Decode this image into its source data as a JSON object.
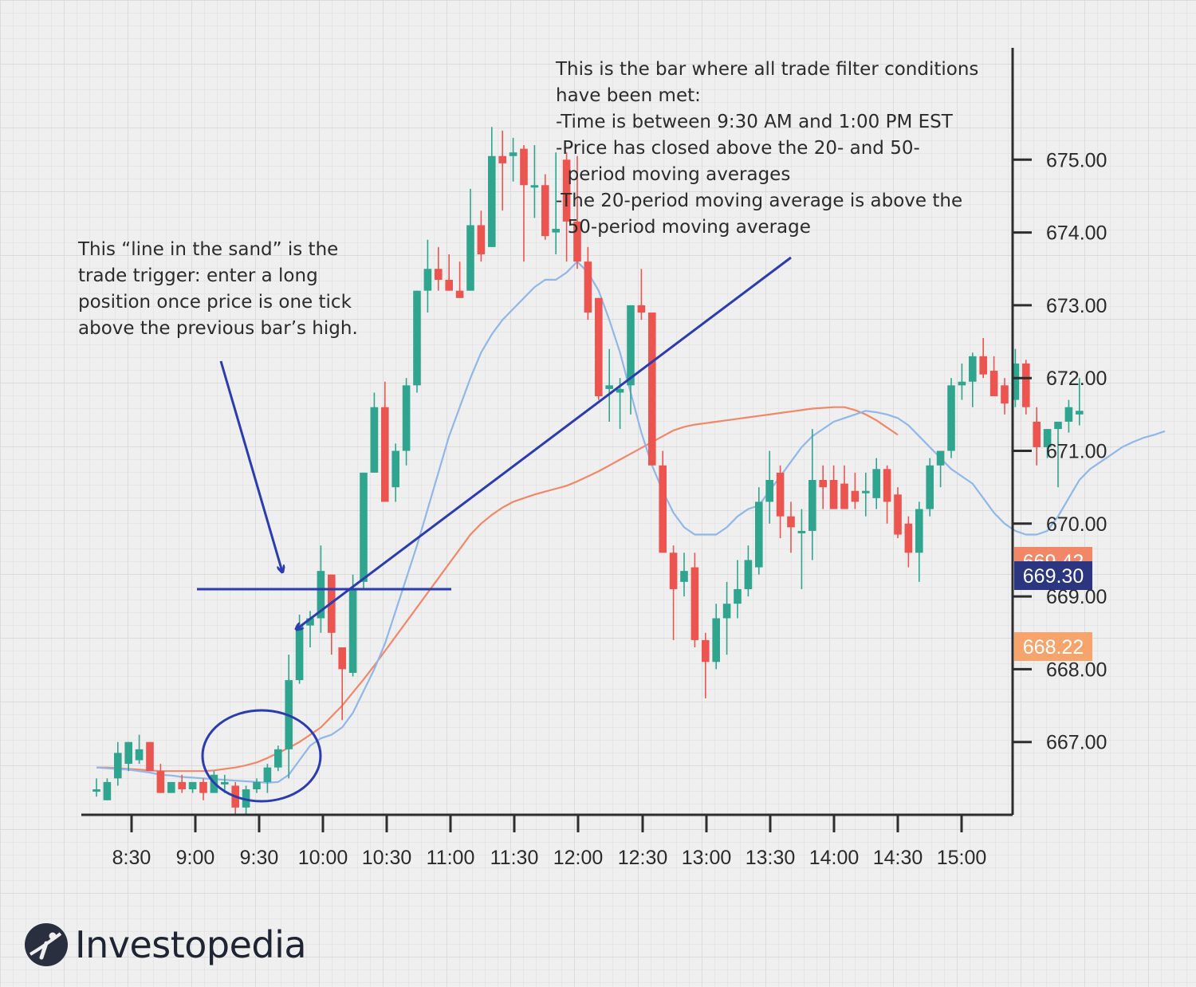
{
  "chart_data": {
    "type": "candlestick",
    "x_ticks": [
      "8:30",
      "9:00",
      "9:30",
      "10:00",
      "10:30",
      "11:00",
      "11:30",
      "12:00",
      "12:30",
      "13:00",
      "13:30",
      "14:00",
      "14:30",
      "15:00"
    ],
    "y_ticks": [
      "667.00",
      "668.00",
      "669.00",
      "670.00",
      "671.00",
      "672.00",
      "673.00",
      "674.00",
      "675.00"
    ],
    "ylim": [
      666.0,
      676.7
    ],
    "bar_interval_minutes": 5,
    "first_bar_time": "8:15",
    "colors": {
      "up": "#2fa58f",
      "down": "#ec5450",
      "ma20": "#8fb7e8",
      "ma50": "#f28768",
      "annotation": "#2b3bb0"
    },
    "candles": [
      {
        "o": 666.35,
        "h": 666.5,
        "l": 666.25,
        "c": 666.35
      },
      {
        "o": 666.2,
        "h": 666.5,
        "l": 666.2,
        "c": 666.45
      },
      {
        "o": 666.5,
        "h": 667.0,
        "l": 666.4,
        "c": 666.85
      },
      {
        "o": 666.7,
        "h": 667.0,
        "l": 666.6,
        "c": 667.0
      },
      {
        "o": 666.75,
        "h": 667.1,
        "l": 666.7,
        "c": 666.9
      },
      {
        "o": 667.0,
        "h": 667.0,
        "l": 666.6,
        "c": 666.6
      },
      {
        "o": 666.6,
        "h": 666.7,
        "l": 666.3,
        "c": 666.3
      },
      {
        "o": 666.3,
        "h": 666.45,
        "l": 666.3,
        "c": 666.45
      },
      {
        "o": 666.45,
        "h": 666.55,
        "l": 666.3,
        "c": 666.35
      },
      {
        "o": 666.35,
        "h": 666.45,
        "l": 666.3,
        "c": 666.45
      },
      {
        "o": 666.45,
        "h": 666.5,
        "l": 666.2,
        "c": 666.3
      },
      {
        "o": 666.3,
        "h": 666.6,
        "l": 666.3,
        "c": 666.55
      },
      {
        "o": 666.45,
        "h": 666.55,
        "l": 666.3,
        "c": 666.45
      },
      {
        "o": 666.4,
        "h": 666.45,
        "l": 666.0,
        "c": 666.1
      },
      {
        "o": 666.1,
        "h": 666.4,
        "l": 666.0,
        "c": 666.35
      },
      {
        "o": 666.35,
        "h": 666.5,
        "l": 666.3,
        "c": 666.45
      },
      {
        "o": 666.45,
        "h": 666.7,
        "l": 666.3,
        "c": 666.65
      },
      {
        "o": 666.65,
        "h": 666.95,
        "l": 666.6,
        "c": 666.9
      },
      {
        "o": 666.9,
        "h": 668.2,
        "l": 666.5,
        "c": 667.85
      },
      {
        "o": 667.85,
        "h": 668.75,
        "l": 667.8,
        "c": 668.6
      },
      {
        "o": 668.6,
        "h": 668.8,
        "l": 668.3,
        "c": 668.7
      },
      {
        "o": 668.7,
        "h": 669.7,
        "l": 668.5,
        "c": 669.35
      },
      {
        "o": 669.3,
        "h": 669.3,
        "l": 668.2,
        "c": 668.5
      },
      {
        "o": 668.3,
        "h": 668.3,
        "l": 667.3,
        "c": 668.0
      },
      {
        "o": 667.95,
        "h": 669.3,
        "l": 667.9,
        "c": 669.1
      },
      {
        "o": 669.2,
        "h": 670.7,
        "l": 669.1,
        "c": 670.7
      },
      {
        "o": 670.7,
        "h": 671.8,
        "l": 670.7,
        "c": 671.6
      },
      {
        "o": 671.6,
        "h": 671.95,
        "l": 670.3,
        "c": 670.3
      },
      {
        "o": 670.5,
        "h": 671.1,
        "l": 670.3,
        "c": 671.0
      },
      {
        "o": 671.0,
        "h": 672.0,
        "l": 670.8,
        "c": 671.9
      },
      {
        "o": 671.9,
        "h": 673.2,
        "l": 671.8,
        "c": 673.2
      },
      {
        "o": 673.2,
        "h": 673.9,
        "l": 672.9,
        "c": 673.5
      },
      {
        "o": 673.5,
        "h": 673.8,
        "l": 673.2,
        "c": 673.35
      },
      {
        "o": 673.35,
        "h": 673.7,
        "l": 673.2,
        "c": 673.2
      },
      {
        "o": 673.2,
        "h": 673.6,
        "l": 673.1,
        "c": 673.1
      },
      {
        "o": 673.2,
        "h": 674.6,
        "l": 673.2,
        "c": 674.1
      },
      {
        "o": 674.1,
        "h": 674.3,
        "l": 673.6,
        "c": 673.7
      },
      {
        "o": 673.8,
        "h": 675.45,
        "l": 673.8,
        "c": 675.05
      },
      {
        "o": 675.05,
        "h": 675.4,
        "l": 674.3,
        "c": 674.95
      },
      {
        "o": 675.05,
        "h": 675.3,
        "l": 674.7,
        "c": 675.1
      },
      {
        "o": 675.15,
        "h": 675.2,
        "l": 673.6,
        "c": 674.65
      },
      {
        "o": 674.65,
        "h": 675.2,
        "l": 674.2,
        "c": 674.65
      },
      {
        "o": 674.65,
        "h": 674.8,
        "l": 673.9,
        "c": 673.95
      },
      {
        "o": 674.0,
        "h": 675.1,
        "l": 673.7,
        "c": 674.05
      },
      {
        "o": 675.0,
        "h": 675.1,
        "l": 673.6,
        "c": 674.15
      },
      {
        "o": 674.15,
        "h": 675.05,
        "l": 673.5,
        "c": 673.6
      },
      {
        "o": 673.6,
        "h": 673.8,
        "l": 672.8,
        "c": 672.9
      },
      {
        "o": 673.1,
        "h": 673.1,
        "l": 671.7,
        "c": 671.75
      },
      {
        "o": 671.85,
        "h": 672.4,
        "l": 671.4,
        "c": 671.9
      },
      {
        "o": 671.8,
        "h": 672.0,
        "l": 671.3,
        "c": 671.85
      },
      {
        "o": 671.9,
        "h": 673.0,
        "l": 671.5,
        "c": 673.0
      },
      {
        "o": 673.0,
        "h": 673.5,
        "l": 672.8,
        "c": 672.9
      },
      {
        "o": 672.9,
        "h": 672.9,
        "l": 670.8,
        "c": 670.8
      },
      {
        "o": 670.8,
        "h": 671.0,
        "l": 669.6,
        "c": 669.6
      },
      {
        "o": 669.6,
        "h": 669.7,
        "l": 668.4,
        "c": 669.1
      },
      {
        "o": 669.2,
        "h": 669.6,
        "l": 669.0,
        "c": 669.35
      },
      {
        "o": 669.4,
        "h": 669.6,
        "l": 668.3,
        "c": 668.4
      },
      {
        "o": 668.4,
        "h": 668.5,
        "l": 667.6,
        "c": 668.1
      },
      {
        "o": 668.1,
        "h": 668.9,
        "l": 668.0,
        "c": 668.7
      },
      {
        "o": 668.7,
        "h": 669.2,
        "l": 668.2,
        "c": 668.9
      },
      {
        "o": 668.9,
        "h": 669.5,
        "l": 668.7,
        "c": 669.1
      },
      {
        "o": 669.1,
        "h": 669.7,
        "l": 669.0,
        "c": 669.5
      },
      {
        "o": 669.4,
        "h": 670.5,
        "l": 669.3,
        "c": 670.3
      },
      {
        "o": 670.3,
        "h": 671.0,
        "l": 670.0,
        "c": 670.6
      },
      {
        "o": 670.7,
        "h": 670.8,
        "l": 669.8,
        "c": 670.1
      },
      {
        "o": 670.1,
        "h": 670.3,
        "l": 669.6,
        "c": 669.95
      },
      {
        "o": 669.9,
        "h": 670.2,
        "l": 669.1,
        "c": 669.9
      },
      {
        "o": 669.9,
        "h": 671.3,
        "l": 669.5,
        "c": 670.6
      },
      {
        "o": 670.6,
        "h": 670.8,
        "l": 670.2,
        "c": 670.5
      },
      {
        "o": 670.6,
        "h": 670.8,
        "l": 670.3,
        "c": 670.2
      },
      {
        "o": 670.55,
        "h": 670.8,
        "l": 670.2,
        "c": 670.2
      },
      {
        "o": 670.45,
        "h": 670.7,
        "l": 670.2,
        "c": 670.3
      },
      {
        "o": 670.45,
        "h": 670.7,
        "l": 670.1,
        "c": 670.45
      },
      {
        "o": 670.35,
        "h": 670.9,
        "l": 670.2,
        "c": 670.75
      },
      {
        "o": 670.75,
        "h": 670.8,
        "l": 670.0,
        "c": 670.3
      },
      {
        "o": 670.4,
        "h": 670.5,
        "l": 669.8,
        "c": 669.85
      },
      {
        "o": 670.0,
        "h": 670.1,
        "l": 669.4,
        "c": 669.6
      },
      {
        "o": 669.6,
        "h": 670.3,
        "l": 669.2,
        "c": 670.2
      },
      {
        "o": 670.2,
        "h": 670.9,
        "l": 670.1,
        "c": 670.8
      },
      {
        "o": 670.8,
        "h": 671.0,
        "l": 670.5,
        "c": 671.0
      },
      {
        "o": 671.0,
        "h": 672.0,
        "l": 670.9,
        "c": 671.9
      },
      {
        "o": 671.9,
        "h": 672.2,
        "l": 671.7,
        "c": 671.95
      },
      {
        "o": 671.95,
        "h": 672.35,
        "l": 671.6,
        "c": 672.3
      },
      {
        "o": 672.3,
        "h": 672.55,
        "l": 672.0,
        "c": 672.05
      },
      {
        "o": 672.1,
        "h": 672.3,
        "l": 671.8,
        "c": 671.75
      },
      {
        "o": 671.9,
        "h": 672.0,
        "l": 671.5,
        "c": 671.65
      },
      {
        "o": 671.7,
        "h": 672.4,
        "l": 671.6,
        "c": 672.2
      },
      {
        "o": 672.2,
        "h": 672.25,
        "l": 671.5,
        "c": 671.6
      },
      {
        "o": 671.4,
        "h": 671.6,
        "l": 670.8,
        "c": 671.05
      },
      {
        "o": 671.05,
        "h": 671.3,
        "l": 670.9,
        "c": 671.3
      },
      {
        "o": 671.3,
        "h": 671.4,
        "l": 670.5,
        "c": 671.4
      },
      {
        "o": 671.4,
        "h": 671.7,
        "l": 671.25,
        "c": 671.6
      },
      {
        "o": 671.5,
        "h": 672.0,
        "l": 671.35,
        "c": 671.55
      }
    ],
    "ma20": [
      666.65,
      666.64,
      666.63,
      666.62,
      666.6,
      666.58,
      666.55,
      666.54,
      666.52,
      666.51,
      666.5,
      666.49,
      666.48,
      666.47,
      666.46,
      666.45,
      666.44,
      666.45,
      666.55,
      666.75,
      666.95,
      667.05,
      667.1,
      667.2,
      667.4,
      667.7,
      668.0,
      668.35,
      668.8,
      669.25,
      669.7,
      670.2,
      670.7,
      671.2,
      671.6,
      672.0,
      672.35,
      672.6,
      672.8,
      672.95,
      673.1,
      673.25,
      673.35,
      673.35,
      673.45,
      673.6,
      673.45,
      673.2,
      672.8,
      672.35,
      671.8,
      671.25,
      670.8,
      670.45,
      670.15,
      669.95,
      669.85,
      669.85,
      669.85,
      669.95,
      670.1,
      670.2,
      670.25,
      670.45,
      670.65,
      670.85,
      671.05,
      671.2,
      671.3,
      671.4,
      671.45,
      671.5,
      671.55,
      671.53,
      671.5,
      671.45,
      671.35,
      671.2,
      671.05,
      670.9,
      670.75,
      670.65,
      670.55,
      670.35,
      670.15,
      670.0,
      669.9,
      669.85,
      669.85,
      669.9,
      670.1,
      670.35,
      670.6,
      670.75,
      670.85,
      670.95,
      671.05,
      671.12,
      671.18,
      671.22,
      671.27
    ],
    "ma50": [
      666.65,
      666.65,
      666.64,
      666.63,
      666.62,
      666.61,
      666.6,
      666.6,
      666.6,
      666.6,
      666.6,
      666.61,
      666.63,
      666.65,
      666.68,
      666.72,
      666.78,
      666.85,
      666.92,
      667.0,
      667.1,
      667.2,
      667.35,
      667.5,
      667.68,
      667.86,
      668.05,
      668.25,
      668.45,
      668.65,
      668.85,
      669.05,
      669.25,
      669.45,
      669.65,
      669.85,
      670.0,
      670.12,
      670.22,
      670.3,
      670.35,
      670.4,
      670.44,
      670.48,
      670.52,
      670.58,
      670.65,
      670.72,
      670.8,
      670.88,
      670.96,
      671.04,
      671.12,
      671.2,
      671.28,
      671.33,
      671.36,
      671.38,
      671.4,
      671.42,
      671.44,
      671.46,
      671.48,
      671.5,
      671.52,
      671.54,
      671.56,
      671.58,
      671.59,
      671.6,
      671.6,
      671.56,
      671.5,
      671.42,
      671.32,
      671.22
    ],
    "annotations": {
      "trigger_text": [
        "This “line in the sand” is the",
        "trade trigger: enter a long",
        "position once price is one tick",
        "above the previous bar’s high."
      ],
      "conditions_text": [
        "This is the bar where all trade filter conditions",
        "have been met:",
        "-Time is between 9:30 AM and 1:00 PM EST",
        "-Price has closed above the 20- and 50-",
        "  period moving averages",
        "-The 20-period moving average is above the",
        "  50-period moving average"
      ],
      "trigger_level": 669.1
    },
    "price_tags": [
      {
        "label": "669.42",
        "value": 669.42,
        "color": "#f28768"
      },
      {
        "label": "669.30",
        "value": 669.3,
        "color": "#2c3580"
      },
      {
        "label": "668.22",
        "value": 668.22,
        "color": "#f6a46c"
      }
    ]
  },
  "brand": {
    "name": "Investopedia"
  }
}
